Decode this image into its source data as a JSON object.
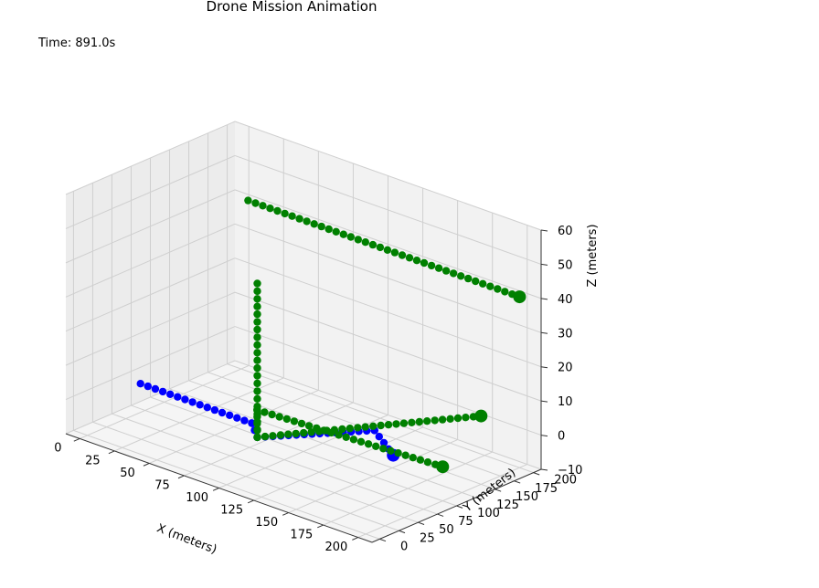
{
  "chart_data": {
    "type": "scatter3d",
    "title": "Drone Mission Animation",
    "time_text": "Time: 891.0s",
    "xlabel": "X (meters)",
    "ylabel": "Y (meters)",
    "zlabel": "Z (meters)",
    "xlim": [
      -10,
      210
    ],
    "ylim": [
      -10,
      210
    ],
    "zlim": [
      -10,
      60
    ],
    "xticks": [
      "0",
      "25",
      "50",
      "75",
      "100",
      "125",
      "150",
      "175",
      "200"
    ],
    "yticks": [
      "0",
      "25",
      "50",
      "75",
      "100",
      "125",
      "150",
      "175",
      "200"
    ],
    "zticks": [
      "−10",
      "0",
      "10",
      "20",
      "30",
      "40",
      "50",
      "60"
    ],
    "grid": true,
    "series": [
      {
        "color": "#0000ff",
        "segments": [
          {
            "from": [
              5,
              60,
              0
            ],
            "to": [
              85,
              60,
              0
            ]
          },
          {
            "from": [
              85,
              60,
              0
            ],
            "to": [
              100,
              40,
              0
            ]
          },
          {
            "from": [
              100,
              40,
              0
            ],
            "to": [
              140,
              120,
              0
            ]
          },
          {
            "from": [
              140,
              120,
              0
            ],
            "to": [
              170,
              90,
              0
            ]
          }
        ],
        "current": [
          170,
          90,
          0
        ]
      },
      {
        "color": "#008000",
        "segments": [
          {
            "from": [
              5,
              200,
              40
            ],
            "to": [
              200,
              200,
              40
            ]
          },
          {
            "from": [
              100,
              40,
              0
            ],
            "to": [
              100,
              40,
              45
            ]
          },
          {
            "from": [
              100,
              40,
              0
            ],
            "to": [
              200,
              150,
              10
            ]
          },
          {
            "from": [
              100,
              40,
              0
            ],
            "to": [
              75,
              85,
              0
            ]
          },
          {
            "from": [
              75,
              85,
              0
            ],
            "to": [
              200,
              100,
              0
            ]
          }
        ],
        "current": [
          200,
          200,
          40
        ],
        "current_extra": [
          [
            200,
            150,
            10
          ],
          [
            200,
            100,
            0
          ]
        ]
      }
    ]
  }
}
